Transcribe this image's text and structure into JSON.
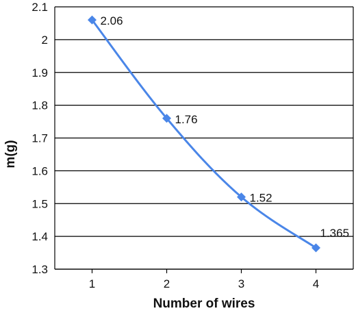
{
  "chart_data": {
    "type": "line",
    "title": "",
    "xlabel": "Number of wires",
    "ylabel": "m(g)",
    "x": [
      1,
      2,
      3,
      4
    ],
    "x_tick_labels": [
      "1",
      "2",
      "3",
      "4"
    ],
    "series": [
      {
        "values": [
          2.06,
          1.76,
          1.52,
          1.365
        ],
        "data_labels": [
          "2.06",
          "1.76",
          "1.52",
          "1.365"
        ],
        "color": "#4a86e8",
        "marker": "diamond"
      }
    ],
    "y_tick_labels": [
      "1.3",
      "1.4",
      "1.5",
      "1.6",
      "1.7",
      "1.8",
      "1.9",
      "2",
      "2.1"
    ],
    "y_ticks": [
      1.3,
      1.4,
      1.5,
      1.6,
      1.7,
      1.8,
      1.9,
      2.0,
      2.1
    ],
    "ylim": [
      1.3,
      2.1
    ],
    "xlim": [
      0.5,
      4.5
    ],
    "grid": "horizontal",
    "legend": "none",
    "colors": {
      "line": "#4a86e8",
      "grid": "#000000",
      "axis": "#000000"
    }
  }
}
